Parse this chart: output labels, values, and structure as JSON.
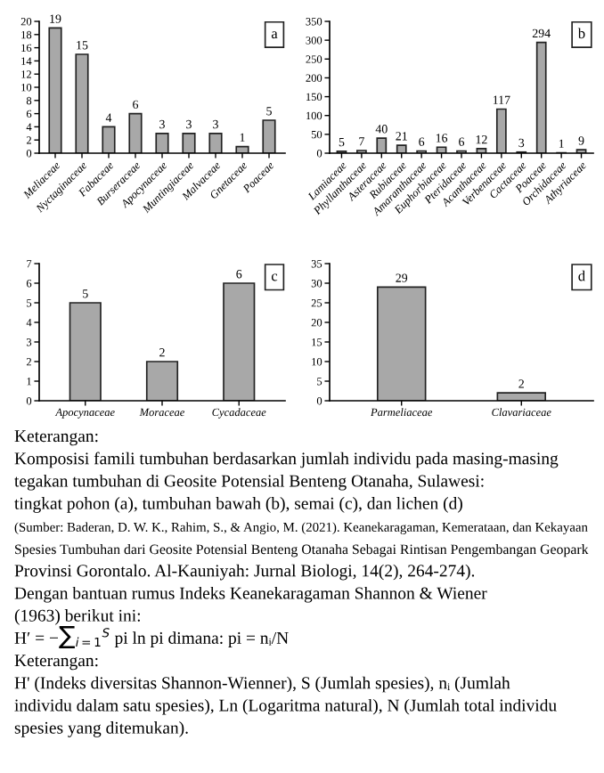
{
  "chart_data": [
    {
      "type": "bar",
      "title": "a",
      "categories": [
        "Meliaceae",
        "Nyctaginaceae",
        "Fabaceae",
        "Burseraceae",
        "Apocynaceae",
        "Muntingiaceae",
        "Malvaceae",
        "Gnetaceae",
        "Poaceae"
      ],
      "values": [
        19,
        15,
        4,
        6,
        3,
        3,
        3,
        1,
        5
      ],
      "color": "#a8a8a8",
      "ylim": [
        0,
        20
      ],
      "yticks": [
        0,
        2,
        4,
        6,
        8,
        10,
        12,
        14,
        16,
        18,
        20
      ],
      "data_labels": true,
      "grid": false
    },
    {
      "type": "bar",
      "title": "b",
      "categories": [
        "Lamiaceae",
        "Phyllanthaceae",
        "Asteraceae",
        "Rubiaceae",
        "Amaranthaceae",
        "Euphorbiaceae",
        "Pteridaceae",
        "Acanthaceae",
        "Verbenaceae",
        "Cactaceae",
        "Poaceae",
        "Orchidaceae",
        "Athyriaceae"
      ],
      "values": [
        5,
        7,
        40,
        21,
        6,
        16,
        6,
        12,
        117,
        3,
        294,
        1,
        9
      ],
      "color": "#a8a8a8",
      "ylim": [
        0,
        350
      ],
      "yticks": [
        0,
        50,
        100,
        150,
        200,
        250,
        300,
        350
      ],
      "data_labels": true,
      "grid": false
    },
    {
      "type": "bar",
      "title": "c",
      "categories": [
        "Apocynaceae",
        "Moraceae",
        "Cycadaceae"
      ],
      "values": [
        5,
        2,
        6
      ],
      "color": "#a8a8a8",
      "ylim": [
        0,
        7
      ],
      "yticks": [
        0,
        1,
        2,
        3,
        4,
        5,
        6,
        7
      ],
      "data_labels": true,
      "grid": false
    },
    {
      "type": "bar",
      "title": "d",
      "categories": [
        "Parmeliaceae",
        "Clavariaceae"
      ],
      "values": [
        29,
        2
      ],
      "color": "#a8a8a8",
      "ylim": [
        0,
        35
      ],
      "yticks": [
        0,
        5,
        10,
        15,
        20,
        25,
        30,
        35
      ],
      "data_labels": true,
      "grid": false,
      "annotations": [
        "Keterangan:",
        "Komposisi famili tumbuhan berdasarkan jumlah individu pada masing-masing",
        "tegakan tumbuhan di Geosite Potensial Benteng Otanaha, Sulawesi:",
        "tingkat pohon (a), tumbuhan bawah (b), semai (c), dan lichen (d)",
        "(Sumber: Baderan, D. W. K., Rahim, S., & Angio, M. (2021). Keanekaragaman, Kemerataan, dan Kekayaan",
        "Spesies Tumbuhan dari Geosite Potensial Benteng Otanaha Sebagai Rintisan Pengembangan Geopark",
        "Provinsi Gorontalo. Al-Kauniyah: Jurnal Biologi, 14(2), 264-274).",
        "Dengan bantuan rumus Indeks Keanekaragaman Shannon & Wiener",
        "(1963) berikut ini:",
        "H′ = −∑$_{i=1}$$^{S}$ pi ln pi dimana: pi = nᵢ/N",
        "Keterangan:",
        "H' (Indeks diversitas Shannon-Wienner), S (Jumlah spesies), nᵢ (Jumlah",
        "individu dalam satu spesies), Ln (Logaritma natural), N (Jumlah total individu",
        "spesies yang ditemukan)."
      ]
    }
  ]
}
